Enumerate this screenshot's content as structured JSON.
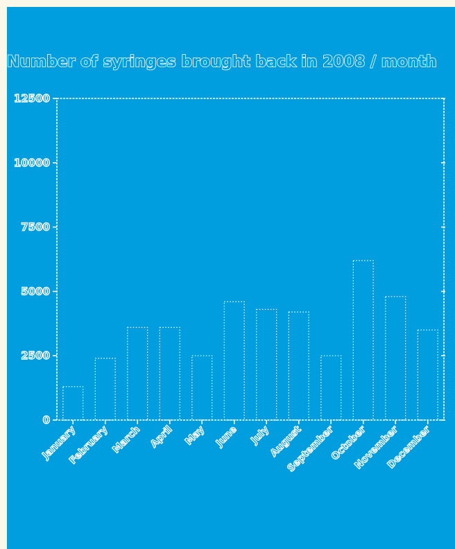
{
  "colors": {
    "background": "#009ede",
    "outer": "#fbf8ea",
    "foreground": "#ffffff"
  },
  "chart_data": {
    "type": "bar",
    "title": "Number of syringes brought back in 2008 / month",
    "xlabel": "",
    "ylabel": "",
    "ylim": [
      0,
      12500
    ],
    "yticks": [
      0,
      2500,
      5000,
      7500,
      10000,
      12500
    ],
    "ytick_labels": [
      "0",
      "2500",
      "5000",
      "7500",
      "10000",
      "12500"
    ],
    "categories": [
      "January",
      "February",
      "March",
      "April",
      "May",
      "June",
      "July",
      "August",
      "September",
      "October",
      "November",
      "December"
    ],
    "values": [
      1300,
      2400,
      3600,
      3600,
      2500,
      4600,
      4300,
      4200,
      2500,
      6200,
      4800,
      3500
    ],
    "grid": false
  }
}
